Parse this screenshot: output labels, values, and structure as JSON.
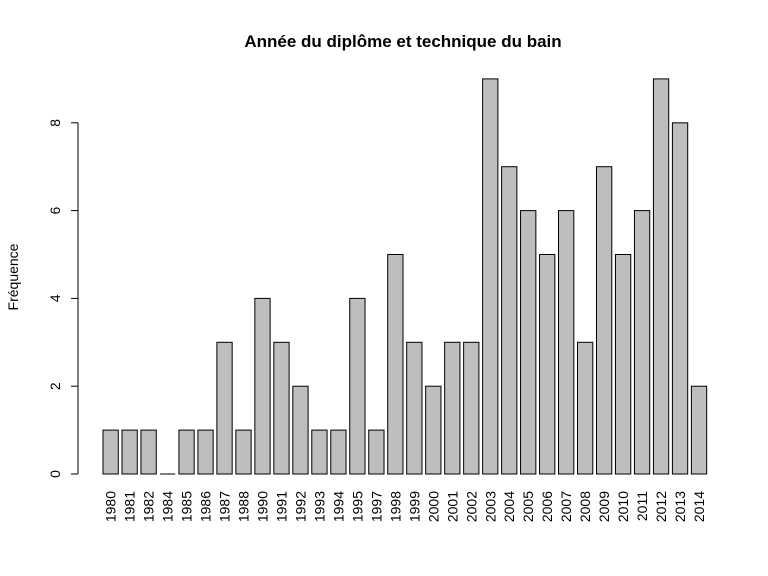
{
  "chart_data": {
    "type": "bar",
    "title": "Année du diplôme et technique du bain",
    "xlabel": "",
    "ylabel": "Fréquence",
    "categories": [
      "1980",
      "1981",
      "1982",
      "1984",
      "1985",
      "1986",
      "1987",
      "1988",
      "1990",
      "1991",
      "1992",
      "1993",
      "1994",
      "1995",
      "1997",
      "1998",
      "1999",
      "2000",
      "2001",
      "2002",
      "2003",
      "2004",
      "2005",
      "2006",
      "2007",
      "2008",
      "2009",
      "2010",
      "2011",
      "2012",
      "2013",
      "2014"
    ],
    "values": [
      1,
      1,
      1,
      0,
      1,
      1,
      3,
      1,
      4,
      3,
      2,
      1,
      1,
      4,
      1,
      5,
      3,
      2,
      3,
      3,
      9,
      7,
      6,
      5,
      6,
      3,
      7,
      5,
      6,
      9,
      8,
      2
    ],
    "ylim": [
      0,
      9
    ],
    "yticks": [
      0,
      2,
      4,
      6,
      8
    ],
    "grid": false,
    "legend": "none",
    "bar_color": "#bebebe"
  }
}
